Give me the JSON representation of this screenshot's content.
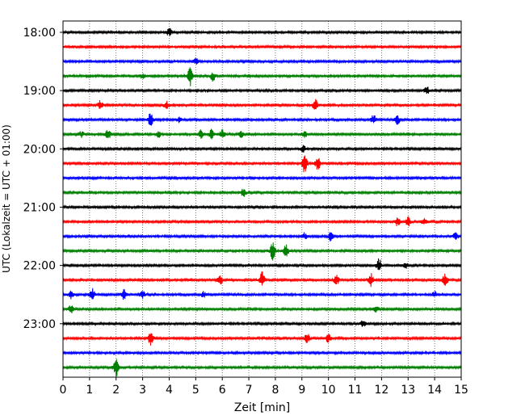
{
  "chart_data": {
    "type": "line",
    "title": "",
    "xlabel": "Zeit  [min]",
    "ylabel": "UTC (Lokalzeit = UTC + 01:00)",
    "xlim": [
      0,
      15
    ],
    "x_ticks": [
      "0",
      "1",
      "2",
      "3",
      "4",
      "5",
      "6",
      "7",
      "8",
      "9",
      "10",
      "11",
      "12",
      "13",
      "14",
      "15"
    ],
    "y_tick_labels": [
      "18:00",
      "19:00",
      "20:00",
      "21:00",
      "22:00",
      "23:00"
    ],
    "grid": "vertical dotted lines at each minute",
    "trace_colors": [
      "#000000",
      "#ff0000",
      "#0000ff",
      "#008000"
    ],
    "traces": [
      {
        "start": "18:00",
        "bursts": [
          [
            4.0,
            0.8
          ]
        ]
      },
      {
        "start": "18:15",
        "bursts": []
      },
      {
        "start": "18:30",
        "bursts": [
          [
            5.0,
            0.6
          ]
        ]
      },
      {
        "start": "18:45",
        "bursts": [
          [
            4.8,
            2.0
          ],
          [
            5.65,
            1.0
          ],
          [
            3.0,
            0.5
          ]
        ]
      },
      {
        "start": "19:00",
        "bursts": [
          [
            13.7,
            0.8
          ]
        ]
      },
      {
        "start": "19:15",
        "bursts": [
          [
            1.4,
            0.9
          ],
          [
            3.9,
            0.8
          ],
          [
            9.5,
            1.2
          ]
        ]
      },
      {
        "start": "19:30",
        "bursts": [
          [
            3.3,
            1.4
          ],
          [
            4.4,
            0.6
          ],
          [
            11.7,
            1.0
          ],
          [
            12.6,
            0.9
          ]
        ]
      },
      {
        "start": "19:45",
        "bursts": [
          [
            0.7,
            0.6
          ],
          [
            1.7,
            1.0
          ],
          [
            3.6,
            0.6
          ],
          [
            5.2,
            1.1
          ],
          [
            5.6,
            1.0
          ],
          [
            6.0,
            0.9
          ],
          [
            6.7,
            0.6
          ],
          [
            9.1,
            0.6
          ]
        ]
      },
      {
        "start": "20:00",
        "bursts": [
          [
            9.05,
            0.7
          ]
        ]
      },
      {
        "start": "20:15",
        "bursts": [
          [
            9.1,
            2.0
          ],
          [
            9.6,
            1.4
          ]
        ]
      },
      {
        "start": "20:30",
        "bursts": []
      },
      {
        "start": "20:45",
        "bursts": [
          [
            6.8,
            0.8
          ]
        ]
      },
      {
        "start": "21:00",
        "bursts": []
      },
      {
        "start": "21:15",
        "bursts": [
          [
            12.6,
            0.9
          ],
          [
            13.0,
            0.9
          ],
          [
            13.6,
            0.6
          ]
        ]
      },
      {
        "start": "21:30",
        "bursts": [
          [
            9.1,
            0.7
          ],
          [
            10.1,
            1.0
          ],
          [
            14.8,
            0.8
          ]
        ]
      },
      {
        "start": "21:45",
        "bursts": [
          [
            7.9,
            1.8
          ],
          [
            8.4,
            1.2
          ]
        ]
      },
      {
        "start": "22:00",
        "bursts": [
          [
            11.9,
            1.4
          ],
          [
            12.9,
            0.6
          ]
        ]
      },
      {
        "start": "22:15",
        "bursts": [
          [
            5.9,
            1.2
          ],
          [
            7.5,
            1.6
          ],
          [
            10.3,
            1.0
          ],
          [
            11.6,
            1.3
          ],
          [
            14.4,
            1.4
          ]
        ]
      },
      {
        "start": "22:30",
        "bursts": [
          [
            0.3,
            0.8
          ],
          [
            1.1,
            1.2
          ],
          [
            2.3,
            1.0
          ],
          [
            3.0,
            0.7
          ],
          [
            5.3,
            0.6
          ],
          [
            14.0,
            0.6
          ]
        ]
      },
      {
        "start": "22:45",
        "bursts": [
          [
            0.3,
            0.8
          ],
          [
            11.8,
            0.6
          ]
        ]
      },
      {
        "start": "23:00",
        "bursts": [
          [
            11.3,
            0.6
          ]
        ]
      },
      {
        "start": "23:15",
        "bursts": [
          [
            3.3,
            1.4
          ],
          [
            9.2,
            1.0
          ],
          [
            10.0,
            0.9
          ]
        ]
      },
      {
        "start": "23:30",
        "bursts": []
      },
      {
        "start": "23:45",
        "bursts": [
          [
            2.0,
            1.8
          ]
        ]
      }
    ]
  }
}
